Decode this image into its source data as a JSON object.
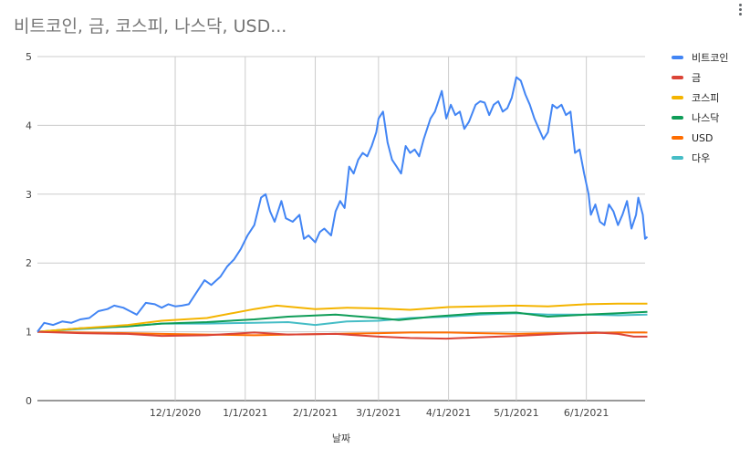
{
  "chart_data": {
    "type": "line",
    "title": "비트코인, 금, 코스피, 나스닥, USD...",
    "xlabel": "날짜",
    "ylabel": "",
    "x_range": [
      "2020-10-01",
      "2021-06-27"
    ],
    "ylim": [
      0,
      5
    ],
    "yticks": [
      "0",
      "1",
      "2",
      "3",
      "4",
      "5"
    ],
    "xticks": [
      {
        "date": "2020-12-01",
        "label": "12/1/2020"
      },
      {
        "date": "2021-01-01",
        "label": "1/1/2021"
      },
      {
        "date": "2021-02-01",
        "label": "2/1/2021"
      },
      {
        "date": "2021-03-01",
        "label": "3/1/2021"
      },
      {
        "date": "2021-04-01",
        "label": "4/1/2021"
      },
      {
        "date": "2021-05-01",
        "label": "5/1/2021"
      },
      {
        "date": "2021-06-01",
        "label": "6/1/2021"
      }
    ],
    "grid": true,
    "legend_position": "right",
    "series": [
      {
        "name": "비트코인",
        "color": "#4285f4",
        "points": [
          [
            "2020-10-01",
            1.0
          ],
          [
            "2020-10-04",
            1.13
          ],
          [
            "2020-10-08",
            1.1
          ],
          [
            "2020-10-12",
            1.15
          ],
          [
            "2020-10-16",
            1.13
          ],
          [
            "2020-10-20",
            1.18
          ],
          [
            "2020-10-24",
            1.2
          ],
          [
            "2020-10-28",
            1.3
          ],
          [
            "2020-11-01",
            1.33
          ],
          [
            "2020-11-04",
            1.38
          ],
          [
            "2020-11-08",
            1.35
          ],
          [
            "2020-11-11",
            1.3
          ],
          [
            "2020-11-14",
            1.25
          ],
          [
            "2020-11-18",
            1.42
          ],
          [
            "2020-11-22",
            1.4
          ],
          [
            "2020-11-25",
            1.35
          ],
          [
            "2020-11-28",
            1.4
          ],
          [
            "2020-12-01",
            1.37
          ],
          [
            "2020-12-04",
            1.38
          ],
          [
            "2020-12-07",
            1.4
          ],
          [
            "2020-12-10",
            1.55
          ],
          [
            "2020-12-14",
            1.75
          ],
          [
            "2020-12-17",
            1.68
          ],
          [
            "2020-12-21",
            1.8
          ],
          [
            "2020-12-24",
            1.95
          ],
          [
            "2020-12-27",
            2.05
          ],
          [
            "2020-12-30",
            2.2
          ],
          [
            "2021-01-02",
            2.4
          ],
          [
            "2021-01-05",
            2.55
          ],
          [
            "2021-01-08",
            2.95
          ],
          [
            "2021-01-10",
            3.0
          ],
          [
            "2021-01-12",
            2.75
          ],
          [
            "2021-01-14",
            2.6
          ],
          [
            "2021-01-17",
            2.9
          ],
          [
            "2021-01-19",
            2.65
          ],
          [
            "2021-01-22",
            2.6
          ],
          [
            "2021-01-25",
            2.7
          ],
          [
            "2021-01-27",
            2.35
          ],
          [
            "2021-01-29",
            2.4
          ],
          [
            "2021-02-01",
            2.3
          ],
          [
            "2021-02-03",
            2.45
          ],
          [
            "2021-02-05",
            2.5
          ],
          [
            "2021-02-08",
            2.4
          ],
          [
            "2021-02-10",
            2.75
          ],
          [
            "2021-02-12",
            2.9
          ],
          [
            "2021-02-14",
            2.8
          ],
          [
            "2021-02-16",
            3.4
          ],
          [
            "2021-02-18",
            3.3
          ],
          [
            "2021-02-20",
            3.5
          ],
          [
            "2021-02-22",
            3.6
          ],
          [
            "2021-02-24",
            3.55
          ],
          [
            "2021-02-26",
            3.7
          ],
          [
            "2021-02-28",
            3.9
          ],
          [
            "2021-03-01",
            4.1
          ],
          [
            "2021-03-03",
            4.2
          ],
          [
            "2021-03-05",
            3.75
          ],
          [
            "2021-03-07",
            3.5
          ],
          [
            "2021-03-09",
            3.4
          ],
          [
            "2021-03-11",
            3.3
          ],
          [
            "2021-03-13",
            3.7
          ],
          [
            "2021-03-15",
            3.6
          ],
          [
            "2021-03-17",
            3.65
          ],
          [
            "2021-03-19",
            3.55
          ],
          [
            "2021-03-21",
            3.8
          ],
          [
            "2021-03-24",
            4.1
          ],
          [
            "2021-03-26",
            4.2
          ],
          [
            "2021-03-29",
            4.5
          ],
          [
            "2021-03-31",
            4.1
          ],
          [
            "2021-04-02",
            4.3
          ],
          [
            "2021-04-04",
            4.15
          ],
          [
            "2021-04-06",
            4.2
          ],
          [
            "2021-04-08",
            3.95
          ],
          [
            "2021-04-10",
            4.05
          ],
          [
            "2021-04-13",
            4.3
          ],
          [
            "2021-04-15",
            4.35
          ],
          [
            "2021-04-17",
            4.33
          ],
          [
            "2021-04-19",
            4.15
          ],
          [
            "2021-04-21",
            4.3
          ],
          [
            "2021-04-23",
            4.35
          ],
          [
            "2021-04-25",
            4.2
          ],
          [
            "2021-04-27",
            4.25
          ],
          [
            "2021-04-29",
            4.4
          ],
          [
            "2021-05-01",
            4.7
          ],
          [
            "2021-05-03",
            4.65
          ],
          [
            "2021-05-05",
            4.45
          ],
          [
            "2021-05-07",
            4.3
          ],
          [
            "2021-05-09",
            4.1
          ],
          [
            "2021-05-11",
            3.95
          ],
          [
            "2021-05-13",
            3.8
          ],
          [
            "2021-05-15",
            3.9
          ],
          [
            "2021-05-17",
            4.3
          ],
          [
            "2021-05-19",
            4.25
          ],
          [
            "2021-05-21",
            4.3
          ],
          [
            "2021-05-23",
            4.15
          ],
          [
            "2021-05-25",
            4.2
          ],
          [
            "2021-05-27",
            3.6
          ],
          [
            "2021-05-29",
            3.65
          ],
          [
            "2021-05-31",
            3.3
          ],
          [
            "2021-06-02",
            3.0
          ],
          [
            "2021-06-03",
            2.7
          ],
          [
            "2021-06-05",
            2.85
          ],
          [
            "2021-06-07",
            2.6
          ],
          [
            "2021-06-09",
            2.55
          ],
          [
            "2021-06-11",
            2.85
          ],
          [
            "2021-06-13",
            2.75
          ],
          [
            "2021-06-15",
            2.55
          ],
          [
            "2021-06-17",
            2.7
          ],
          [
            "2021-06-19",
            2.9
          ],
          [
            "2021-06-21",
            2.5
          ],
          [
            "2021-06-23",
            2.7
          ],
          [
            "2021-06-24",
            2.95
          ],
          [
            "2021-06-26",
            2.7
          ],
          [
            "2021-06-27",
            2.35
          ],
          [
            "2021-06-28",
            2.38
          ]
        ]
      },
      {
        "name": "금",
        "color": "#db4437",
        "points": [
          [
            "2020-10-01",
            1.0
          ],
          [
            "2020-10-20",
            0.98
          ],
          [
            "2020-11-10",
            0.97
          ],
          [
            "2020-11-25",
            0.94
          ],
          [
            "2020-12-15",
            0.95
          ],
          [
            "2021-01-05",
            0.99
          ],
          [
            "2021-01-20",
            0.96
          ],
          [
            "2021-02-10",
            0.97
          ],
          [
            "2021-03-01",
            0.93
          ],
          [
            "2021-03-15",
            0.91
          ],
          [
            "2021-03-31",
            0.9
          ],
          [
            "2021-04-15",
            0.92
          ],
          [
            "2021-05-01",
            0.94
          ],
          [
            "2021-05-20",
            0.97
          ],
          [
            "2021-06-05",
            0.99
          ],
          [
            "2021-06-15",
            0.97
          ],
          [
            "2021-06-22",
            0.93
          ],
          [
            "2021-06-28",
            0.93
          ]
        ]
      },
      {
        "name": "코스피",
        "color": "#f4b400",
        "points": [
          [
            "2020-10-01",
            1.0
          ],
          [
            "2020-10-20",
            1.05
          ],
          [
            "2020-11-10",
            1.1
          ],
          [
            "2020-11-25",
            1.16
          ],
          [
            "2020-12-15",
            1.2
          ],
          [
            "2021-01-05",
            1.33
          ],
          [
            "2021-01-15",
            1.38
          ],
          [
            "2021-02-01",
            1.33
          ],
          [
            "2021-02-15",
            1.35
          ],
          [
            "2021-03-01",
            1.34
          ],
          [
            "2021-03-15",
            1.32
          ],
          [
            "2021-04-01",
            1.36
          ],
          [
            "2021-04-15",
            1.37
          ],
          [
            "2021-05-01",
            1.38
          ],
          [
            "2021-05-15",
            1.37
          ],
          [
            "2021-06-01",
            1.4
          ],
          [
            "2021-06-15",
            1.41
          ],
          [
            "2021-06-28",
            1.41
          ]
        ]
      },
      {
        "name": "나스닥",
        "color": "#0f9d58",
        "points": [
          [
            "2020-10-01",
            1.0
          ],
          [
            "2020-10-20",
            1.05
          ],
          [
            "2020-11-10",
            1.08
          ],
          [
            "2020-11-25",
            1.12
          ],
          [
            "2020-12-15",
            1.14
          ],
          [
            "2021-01-05",
            1.18
          ],
          [
            "2021-01-20",
            1.22
          ],
          [
            "2021-02-10",
            1.25
          ],
          [
            "2021-03-01",
            1.2
          ],
          [
            "2021-03-10",
            1.17
          ],
          [
            "2021-03-25",
            1.22
          ],
          [
            "2021-04-15",
            1.27
          ],
          [
            "2021-05-01",
            1.28
          ],
          [
            "2021-05-15",
            1.22
          ],
          [
            "2021-06-01",
            1.25
          ],
          [
            "2021-06-15",
            1.27
          ],
          [
            "2021-06-28",
            1.29
          ]
        ]
      },
      {
        "name": "USD",
        "color": "#ff6d00",
        "points": [
          [
            "2020-10-01",
            1.0
          ],
          [
            "2020-10-20",
            0.99
          ],
          [
            "2020-11-10",
            0.98
          ],
          [
            "2020-11-25",
            0.97
          ],
          [
            "2020-12-15",
            0.96
          ],
          [
            "2021-01-05",
            0.95
          ],
          [
            "2021-01-20",
            0.96
          ],
          [
            "2021-02-10",
            0.97
          ],
          [
            "2021-03-01",
            0.98
          ],
          [
            "2021-03-15",
            0.99
          ],
          [
            "2021-04-01",
            0.99
          ],
          [
            "2021-04-15",
            0.98
          ],
          [
            "2021-05-01",
            0.97
          ],
          [
            "2021-05-15",
            0.98
          ],
          [
            "2021-06-01",
            0.98
          ],
          [
            "2021-06-15",
            0.99
          ],
          [
            "2021-06-28",
            0.99
          ]
        ]
      },
      {
        "name": "다우",
        "color": "#46bdc6",
        "points": [
          [
            "2020-10-01",
            1.0
          ],
          [
            "2020-10-20",
            1.04
          ],
          [
            "2020-11-10",
            1.08
          ],
          [
            "2020-11-25",
            1.12
          ],
          [
            "2020-12-15",
            1.12
          ],
          [
            "2021-01-05",
            1.13
          ],
          [
            "2021-01-20",
            1.14
          ],
          [
            "2021-02-01",
            1.1
          ],
          [
            "2021-02-15",
            1.15
          ],
          [
            "2021-03-01",
            1.16
          ],
          [
            "2021-03-15",
            1.2
          ],
          [
            "2021-04-01",
            1.22
          ],
          [
            "2021-04-15",
            1.25
          ],
          [
            "2021-05-01",
            1.27
          ],
          [
            "2021-05-15",
            1.25
          ],
          [
            "2021-06-01",
            1.25
          ],
          [
            "2021-06-15",
            1.24
          ],
          [
            "2021-06-28",
            1.25
          ]
        ]
      }
    ]
  }
}
